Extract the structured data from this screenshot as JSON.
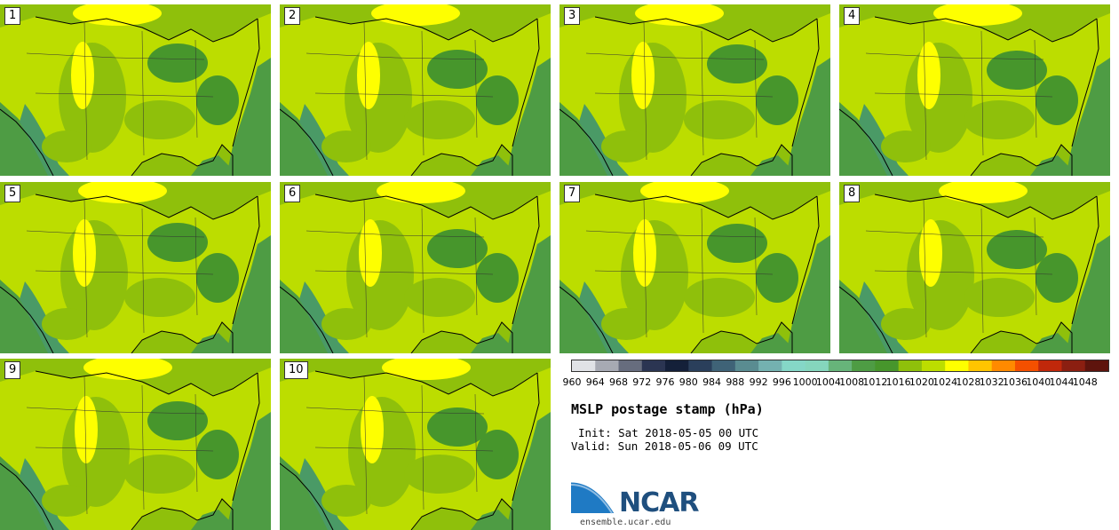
{
  "chart_data": {
    "type": "heatmap",
    "title": "MSLP postage stamp (hPa)",
    "init_text": "Init: Sat 2018-05-05 00 UTC",
    "valid_text": "Valid: Sun 2018-05-06 09 UTC",
    "members": [
      "1",
      "2",
      "3",
      "4",
      "5",
      "6",
      "7",
      "8",
      "9",
      "10"
    ],
    "colorbar": {
      "levels": [
        960,
        964,
        968,
        972,
        976,
        980,
        984,
        988,
        992,
        996,
        1000,
        1004,
        1008,
        1012,
        1016,
        1020,
        1024,
        1028,
        1032,
        1036,
        1040,
        1044,
        1048
      ],
      "tick_labels": [
        "960",
        "964",
        "968",
        "972",
        "976",
        "980",
        "984",
        "988",
        "992",
        "996",
        "1000",
        "1004",
        "1008",
        "1012",
        "1016",
        "1020",
        "1024",
        "1028",
        "1032",
        "1036",
        "1040",
        "1044",
        "1048"
      ],
      "colors": [
        "#e0e2e6",
        "#a7aab3",
        "#676d7e",
        "#2b3552",
        "#142039",
        "#2a3f5b",
        "#3f6377",
        "#5a8c91",
        "#74b1b0",
        "#85d7c7",
        "#85d6bd",
        "#67b47a",
        "#4e9c44",
        "#47962c",
        "#8fc00b",
        "#bcdd00",
        "#feff00",
        "#ffc400",
        "#ff8a00",
        "#f45000",
        "#c0280b",
        "#8b1f11",
        "#5e140d"
      ]
    },
    "panel_colors": {
      "low": "#4e9c44",
      "mid_low": "#47962c",
      "mid": "#8fc00b",
      "mid_high": "#bcdd00",
      "high": "#feff00",
      "ocean": "#4e9c44"
    }
  },
  "branding": {
    "logo_text": "NCAR",
    "url": "ensemble.ucar.edu"
  }
}
